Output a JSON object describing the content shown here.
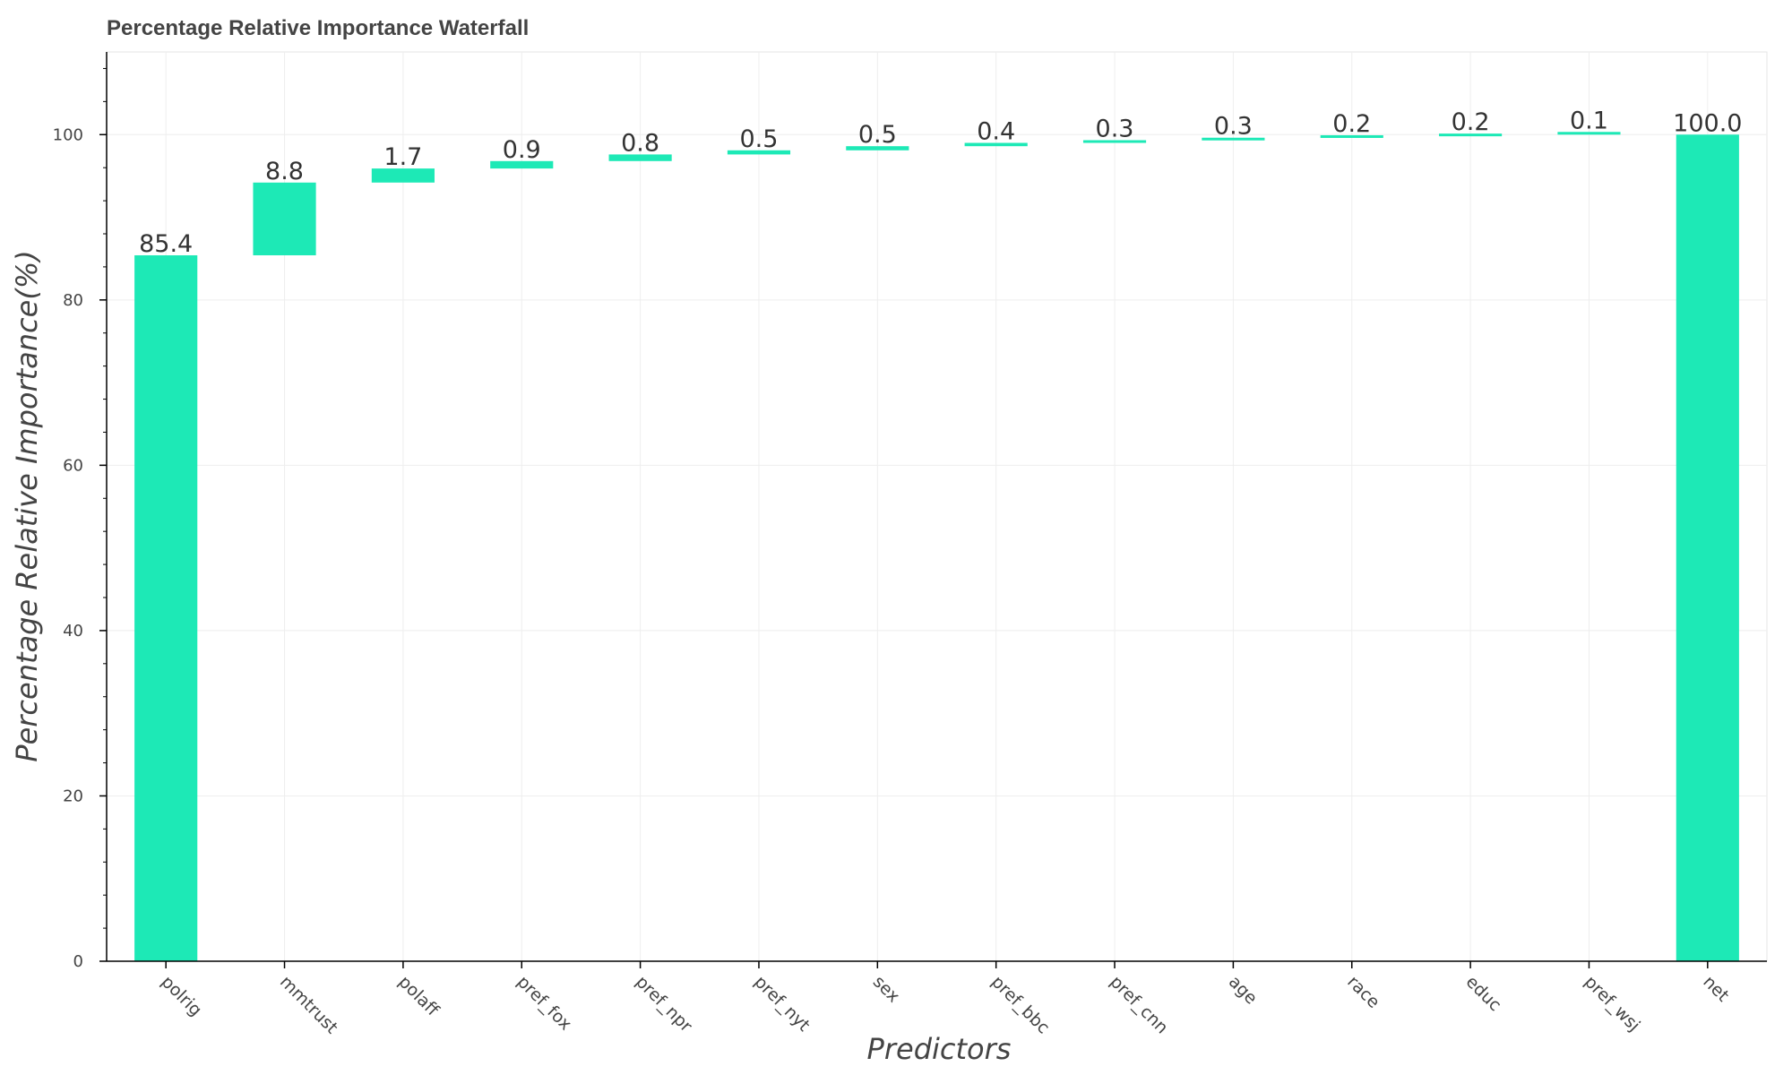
{
  "chart_data": {
    "type": "bar",
    "subtype": "waterfall",
    "title": "Percentage Relative Importance Waterfall",
    "xlabel": "Predictors",
    "ylabel": "Percentage Relative Importance(%)",
    "categories": [
      "polrig",
      "mmtrust",
      "polaff",
      "pref_fox",
      "pref_npr",
      "pref_nyt",
      "sex",
      "pref_bbc",
      "pref_cnn",
      "age",
      "race",
      "educ",
      "pref_wsj",
      "net"
    ],
    "values": [
      85.4,
      8.8,
      1.7,
      0.9,
      0.8,
      0.5,
      0.5,
      0.4,
      0.3,
      0.3,
      0.2,
      0.2,
      0.1,
      100.0
    ],
    "value_labels": [
      "85.4",
      "8.8",
      "1.7",
      "0.9",
      "0.8",
      "0.5",
      "0.5",
      "0.4",
      "0.3",
      "0.3",
      "0.2",
      "0.2",
      "0.1",
      "100.0"
    ],
    "ylim": [
      0,
      110
    ],
    "yticks": [
      0,
      20,
      40,
      60,
      80,
      100
    ],
    "ytick_labels": [
      "0",
      "20",
      "40",
      "60",
      "80",
      "100"
    ],
    "grid": true,
    "bar_color": "#1de9b6",
    "axis_color": "#444444",
    "grid_color": "#eeeeee"
  }
}
